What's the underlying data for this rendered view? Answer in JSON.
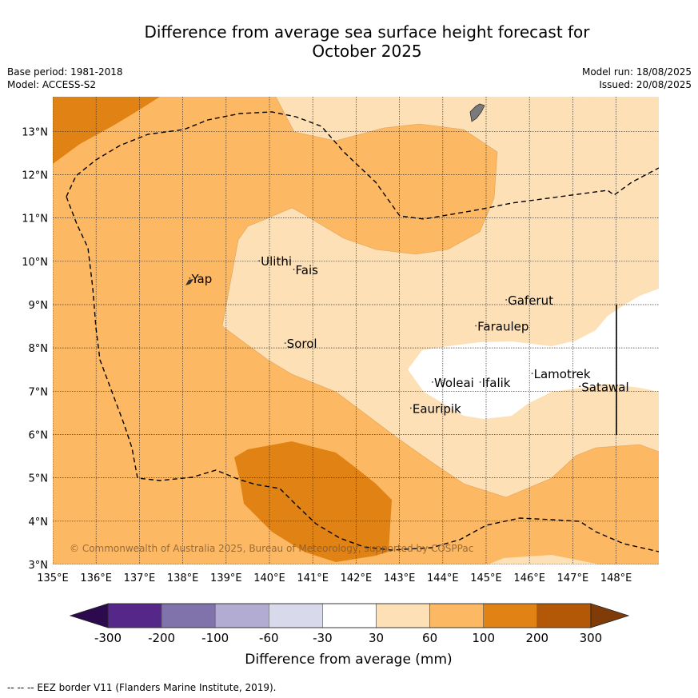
{
  "title_line1": "Difference from average sea surface height forecast for",
  "title_line2": "October 2025",
  "base_period": "Base period: 1981-2018",
  "model": "Model: ACCESS-S2",
  "model_run": "Model run: 18/08/2025",
  "issued": "Issued: 20/08/2025",
  "copyright": "© Commonwealth of Australia 2025, Bureau of Meteorology, supported by COSPPac",
  "footer_legend": "-- -- -- EEZ border V11 (Flanders Marine Institute, 2019).",
  "map": {
    "lon_range": [
      135,
      149
    ],
    "lat_range": [
      3,
      13.8
    ],
    "lon_ticks": [
      "135°E",
      "136°E",
      "137°E",
      "138°E",
      "139°E",
      "140°E",
      "141°E",
      "142°E",
      "143°E",
      "144°E",
      "145°E",
      "146°E",
      "147°E",
      "148°E"
    ],
    "lat_ticks": [
      "3°N",
      "4°N",
      "5°N",
      "6°N",
      "7°N",
      "8°N",
      "9°N",
      "10°N",
      "11°N",
      "12°N",
      "13°N"
    ],
    "places": [
      {
        "name": "Ulithi",
        "lon": 139.8,
        "lat": 9.9
      },
      {
        "name": "Fais",
        "lon": 140.6,
        "lat": 9.7
      },
      {
        "name": "Yap",
        "lon": 138.2,
        "lat": 9.5
      },
      {
        "name": "Gaferut",
        "lon": 145.5,
        "lat": 9.0
      },
      {
        "name": "Faraulep",
        "lon": 144.8,
        "lat": 8.4
      },
      {
        "name": "Sorol",
        "lon": 140.4,
        "lat": 8.0
      },
      {
        "name": "Lamotrek",
        "lon": 146.1,
        "lat": 7.3
      },
      {
        "name": "Woleai",
        "lon": 143.8,
        "lat": 7.1
      },
      {
        "name": "Ifalik",
        "lon": 144.9,
        "lat": 7.1
      },
      {
        "name": "Satawal",
        "lon": 147.2,
        "lat": 7.0
      },
      {
        "name": "Eauripik",
        "lon": 143.3,
        "lat": 6.5
      }
    ]
  },
  "colorbar": {
    "label": "Difference from average (mm)",
    "ticks": [
      "-300",
      "-200",
      "-100",
      "-60",
      "-30",
      "30",
      "60",
      "100",
      "200",
      "300"
    ],
    "colors": {
      "under": "#2d0a4e",
      "c1": "#542788",
      "c2": "#8073ac",
      "c3": "#b2abd2",
      "c4": "#d8daeb",
      "c5": "#ffffff",
      "c6": "#fee0b6",
      "c7": "#fdb863",
      "c8": "#e08214",
      "c9": "#b35806",
      "over": "#7f3b08"
    }
  }
}
